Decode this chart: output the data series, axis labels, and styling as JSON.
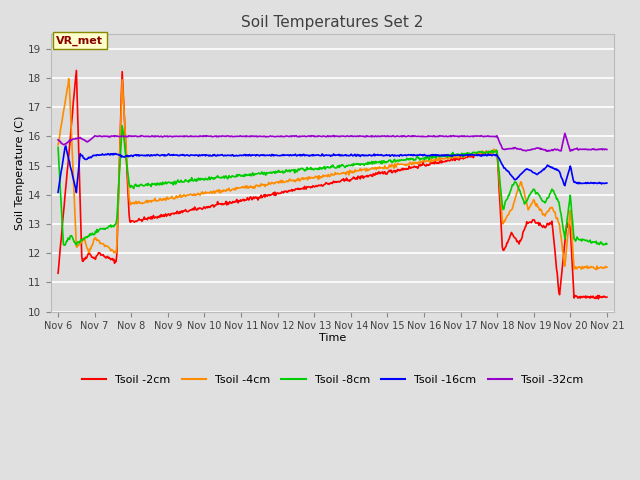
{
  "title": "Soil Temperatures Set 2",
  "xlabel": "Time",
  "ylabel": "Soil Temperature (C)",
  "ylim": [
    10.0,
    19.5
  ],
  "yticks": [
    10.0,
    11.0,
    12.0,
    13.0,
    14.0,
    15.0,
    16.0,
    17.0,
    18.0,
    19.0
  ],
  "fig_bg_color": "#e0e0e0",
  "plot_bg_color": "#dcdcdc",
  "grid_color": "#ffffff",
  "annotation_label": "VR_met",
  "annotation_box_color": "#ffffcc",
  "annotation_text_color": "#8b0000",
  "series_colors": {
    "Tsoil -2cm": "#ff0000",
    "Tsoil -4cm": "#ff8c00",
    "Tsoil -8cm": "#00cc00",
    "Tsoil -16cm": "#0000ff",
    "Tsoil -32cm": "#9900cc"
  },
  "x_tick_labels": [
    "Nov 6",
    "Nov 7",
    "Nov 8",
    "Nov 9",
    "Nov 10",
    "Nov 11",
    "Nov 12",
    "Nov 13",
    "Nov 14",
    "Nov 15",
    "Nov 16",
    "Nov 17",
    "Nov 18",
    "Nov 19",
    "Nov 20",
    "Nov 21"
  ],
  "num_days": 15,
  "points_per_day": 48
}
